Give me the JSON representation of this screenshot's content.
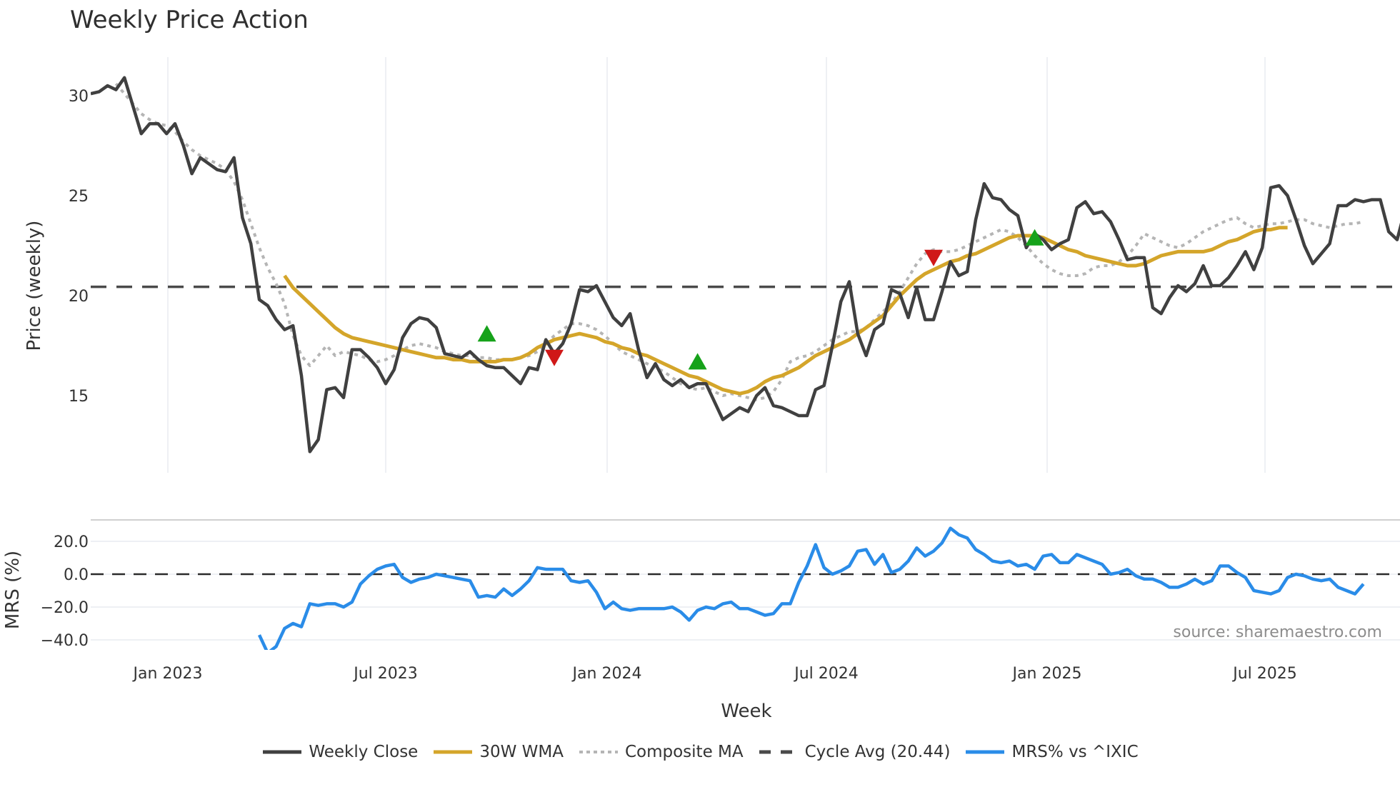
{
  "title": "Weekly Price Action",
  "source_label": "source: sharemaestro.com",
  "legend": [
    {
      "label": "Weekly Close",
      "style": "solid",
      "color": "#404040"
    },
    {
      "label": "30W WMA",
      "style": "solid",
      "color": "#D4A52A"
    },
    {
      "label": "Composite MA",
      "style": "dotted",
      "color": "#B5B5B5"
    },
    {
      "label": "Cycle Avg (20.44)",
      "style": "dashed",
      "color": "#4A4A4A"
    },
    {
      "label": "MRS% vs ^IXIC",
      "style": "solid",
      "color": "#2A8CE8"
    }
  ],
  "colors": {
    "close": "#404040",
    "wma": "#D4A52A",
    "composite": "#B5B5B5",
    "cycle": "#4A4A4A",
    "mrs": "#2A8CE8",
    "buy_marker": "#16A21A",
    "sell_marker": "#D01818",
    "grid": "#E8ECF0",
    "zero_line": "#2B2B2B"
  },
  "chart_data": [
    {
      "type": "line",
      "title": "Weekly Price Action",
      "xlabel": "Week",
      "ylabel": "Price (weekly)",
      "x_start": "2022-10-31",
      "x_interval": "weekly",
      "x_ticks": [
        "Jan 2023",
        "Jul 2023",
        "Jan 2024",
        "Jul 2024",
        "Jan 2025",
        "Jul 2025"
      ],
      "y_ticks": [
        15,
        20,
        25,
        30
      ],
      "ylim": [
        11,
        31.9
      ],
      "grid": "vertical",
      "cycle_avg": 20.44,
      "series": [
        {
          "name": "Weekly Close",
          "start_index": 0,
          "values": [
            30.1,
            30.2,
            30.5,
            30.3,
            30.9,
            29.5,
            28.1,
            28.6,
            28.6,
            28.1,
            28.6,
            27.5,
            26.1,
            26.9,
            26.6,
            26.3,
            26.2,
            26.9,
            23.9,
            22.6,
            19.8,
            19.5,
            18.8,
            18.3,
            18.5,
            16.0,
            12.2,
            12.8,
            15.3,
            15.4,
            14.9,
            17.3,
            17.3,
            16.9,
            16.4,
            15.6,
            16.3,
            17.9,
            18.6,
            18.9,
            18.8,
            18.4,
            17.1,
            17.0,
            16.9,
            17.2,
            16.8,
            16.5,
            16.4,
            16.4,
            16.0,
            15.6,
            16.4,
            16.3,
            17.8,
            17.1,
            17.6,
            18.6,
            20.3,
            20.2,
            20.5,
            19.7,
            18.9,
            18.5,
            19.1,
            17.3,
            15.9,
            16.6,
            15.8,
            15.5,
            15.8,
            15.4,
            15.6,
            15.6,
            14.7,
            13.8,
            14.1,
            14.4,
            14.2,
            15.0,
            15.4,
            14.5,
            14.4,
            14.2,
            14.0,
            14.0,
            15.3,
            15.5,
            17.5,
            19.7,
            20.7,
            18.1,
            17.0,
            18.3,
            18.6,
            20.3,
            20.1,
            18.9,
            20.4,
            18.8,
            18.8,
            20.2,
            21.7,
            21.0,
            21.2,
            23.8,
            25.6,
            24.9,
            24.8,
            24.3,
            24.0,
            22.4,
            23.1,
            22.8,
            22.3,
            22.6,
            22.8,
            24.4,
            24.7,
            24.1,
            24.2,
            23.7,
            22.8,
            21.8,
            21.9,
            21.9,
            19.4,
            19.1,
            19.9,
            20.5,
            20.2,
            20.6,
            21.5,
            20.5,
            20.5,
            20.9,
            21.5,
            22.2,
            21.3,
            22.4,
            25.4,
            25.5,
            25.0,
            23.8,
            22.5,
            21.6,
            22.1,
            22.6,
            24.5,
            24.5,
            24.8,
            24.7,
            24.8,
            24.8,
            23.2,
            22.8,
            24.4
          ]
        },
        {
          "name": "30W WMA",
          "start_index": 23,
          "values": [
            21.0,
            20.4,
            20.0,
            19.6,
            19.2,
            18.8,
            18.4,
            18.1,
            17.9,
            17.8,
            17.7,
            17.6,
            17.5,
            17.4,
            17.3,
            17.2,
            17.1,
            17.0,
            16.9,
            16.9,
            16.8,
            16.8,
            16.7,
            16.7,
            16.7,
            16.7,
            16.8,
            16.8,
            16.9,
            17.1,
            17.4,
            17.6,
            17.8,
            17.9,
            18.0,
            18.1,
            18.0,
            17.9,
            17.7,
            17.6,
            17.4,
            17.3,
            17.1,
            17.0,
            16.8,
            16.6,
            16.4,
            16.2,
            16.0,
            15.9,
            15.7,
            15.5,
            15.3,
            15.2,
            15.1,
            15.2,
            15.4,
            15.7,
            15.9,
            16.0,
            16.2,
            16.4,
            16.7,
            17.0,
            17.2,
            17.4,
            17.6,
            17.8,
            18.1,
            18.4,
            18.7,
            19.0,
            19.5,
            20.0,
            20.4,
            20.8,
            21.1,
            21.3,
            21.5,
            21.7,
            21.8,
            22.0,
            22.1,
            22.3,
            22.5,
            22.7,
            22.9,
            23.0,
            23.0,
            23.0,
            22.9,
            22.7,
            22.5,
            22.3,
            22.2,
            22.0,
            21.9,
            21.8,
            21.7,
            21.6,
            21.5,
            21.5,
            21.6,
            21.8,
            22.0,
            22.1,
            22.2,
            22.2,
            22.2,
            22.2,
            22.3,
            22.5,
            22.7,
            22.8,
            23.0,
            23.2,
            23.3,
            23.3,
            23.4,
            23.4
          ]
        },
        {
          "name": "Composite MA",
          "start_index": 3,
          "values": [
            30.6,
            30.1,
            29.6,
            29.1,
            28.8,
            28.6,
            28.5,
            28.2,
            27.7,
            27.3,
            27.0,
            26.8,
            26.6,
            26.3,
            25.7,
            24.8,
            23.6,
            22.4,
            21.4,
            20.6,
            19.6,
            18.0,
            17.0,
            16.5,
            17.0,
            17.5,
            17.0,
            17.2,
            17.1,
            17.0,
            16.8,
            16.7,
            16.8,
            17.0,
            17.3,
            17.5,
            17.6,
            17.5,
            17.4,
            17.2,
            17.1,
            17.0,
            17.0,
            16.9,
            16.9,
            16.8,
            16.8,
            16.8,
            16.9,
            17.0,
            17.2,
            17.6,
            18.0,
            18.3,
            18.6,
            18.6,
            18.5,
            18.3,
            18.0,
            17.6,
            17.2,
            17.0,
            16.8,
            16.6,
            16.4,
            16.2,
            15.9,
            15.6,
            15.4,
            15.3,
            15.4,
            15.2,
            15.0,
            15.1,
            15.0,
            14.9,
            14.8,
            14.9,
            15.2,
            15.8,
            16.7,
            16.9,
            17.0,
            17.2,
            17.5,
            17.8,
            18.0,
            18.2,
            18.2,
            18.4,
            18.8,
            19.2,
            19.6,
            20.2,
            20.9,
            21.6,
            22.1,
            22.3,
            22.2,
            22.2,
            22.3,
            22.5,
            22.7,
            22.9,
            23.1,
            23.3,
            23.2,
            22.9,
            22.5,
            22.0,
            21.6,
            21.3,
            21.1,
            21.0,
            21.0,
            21.1,
            21.4,
            21.5,
            21.5,
            21.7,
            22.0,
            22.5,
            23.1,
            22.9,
            22.7,
            22.5,
            22.4,
            22.6,
            22.9,
            23.2,
            23.4,
            23.6,
            23.8,
            23.9,
            23.6,
            23.4,
            23.5,
            23.6,
            23.6,
            23.7,
            23.8,
            23.8,
            23.6,
            23.5,
            23.4,
            23.5,
            23.6,
            23.6,
            23.7
          ]
        }
      ],
      "markers": [
        {
          "type": "buy",
          "index": 47,
          "value": 18.1
        },
        {
          "type": "sell",
          "index": 55,
          "value": 16.9
        },
        {
          "type": "buy",
          "index": 72,
          "value": 16.7
        },
        {
          "type": "sell",
          "index": 100,
          "value": 21.9
        },
        {
          "type": "buy",
          "index": 112,
          "value": 22.9
        }
      ]
    },
    {
      "type": "line",
      "title": "MRS% vs ^IXIC",
      "xlabel": "Week",
      "ylabel": "MRS (%)",
      "y_ticks": [
        20.0,
        0.0,
        -20.0,
        -40.0
      ],
      "ylim": [
        -50,
        30
      ],
      "series": [
        {
          "name": "MRS% vs ^IXIC",
          "start_index": 20,
          "values": [
            -37,
            -48,
            -44,
            -33,
            -30,
            -32,
            -18,
            -19,
            -18,
            -18,
            -20,
            -17,
            -6,
            -1,
            3,
            5,
            6,
            -2,
            -5,
            -3,
            -2,
            0,
            -1,
            -2,
            -3,
            -4,
            -14,
            -13,
            -14,
            -9,
            -13,
            -9,
            -4,
            4,
            3,
            3,
            3,
            -4,
            -5,
            -4,
            -11,
            -21,
            -17,
            -21,
            -22,
            -21,
            -21,
            -21,
            -21,
            -20,
            -23,
            -28,
            -22,
            -20,
            -21,
            -18,
            -17,
            -21,
            -21,
            -23,
            -25,
            -24,
            -18,
            -18,
            -5,
            5,
            18,
            4,
            0,
            2,
            5,
            14,
            15,
            6,
            12,
            1,
            3,
            8,
            16,
            11,
            14,
            19,
            28,
            24,
            22,
            15,
            12,
            8,
            7,
            8,
            5,
            6,
            3,
            11,
            12,
            7,
            7,
            12,
            10,
            8,
            6,
            0,
            1,
            3,
            -1,
            -3,
            -3,
            -5,
            -8,
            -8,
            -6,
            -3,
            -6,
            -4,
            5,
            5,
            1,
            -2,
            -10,
            -11,
            -12,
            -10,
            -2,
            0,
            -1,
            -3,
            -4,
            -3,
            -8,
            -10,
            -12,
            -6
          ]
        }
      ],
      "zero_line": 0.0
    }
  ],
  "axis": {
    "price_y_ticks": [
      "15",
      "20",
      "25",
      "30"
    ],
    "mrs_y_ticks": [
      "20.0",
      "0.0",
      "−20.0",
      "−40.0"
    ],
    "x_ticks": [
      "Jan 2023",
      "Jul 2023",
      "Jan 2024",
      "Jul 2024",
      "Jan 2025",
      "Jul 2025"
    ],
    "x_title": "Week",
    "price_y_title": "Price (weekly)",
    "mrs_y_title": "MRS (%)"
  }
}
